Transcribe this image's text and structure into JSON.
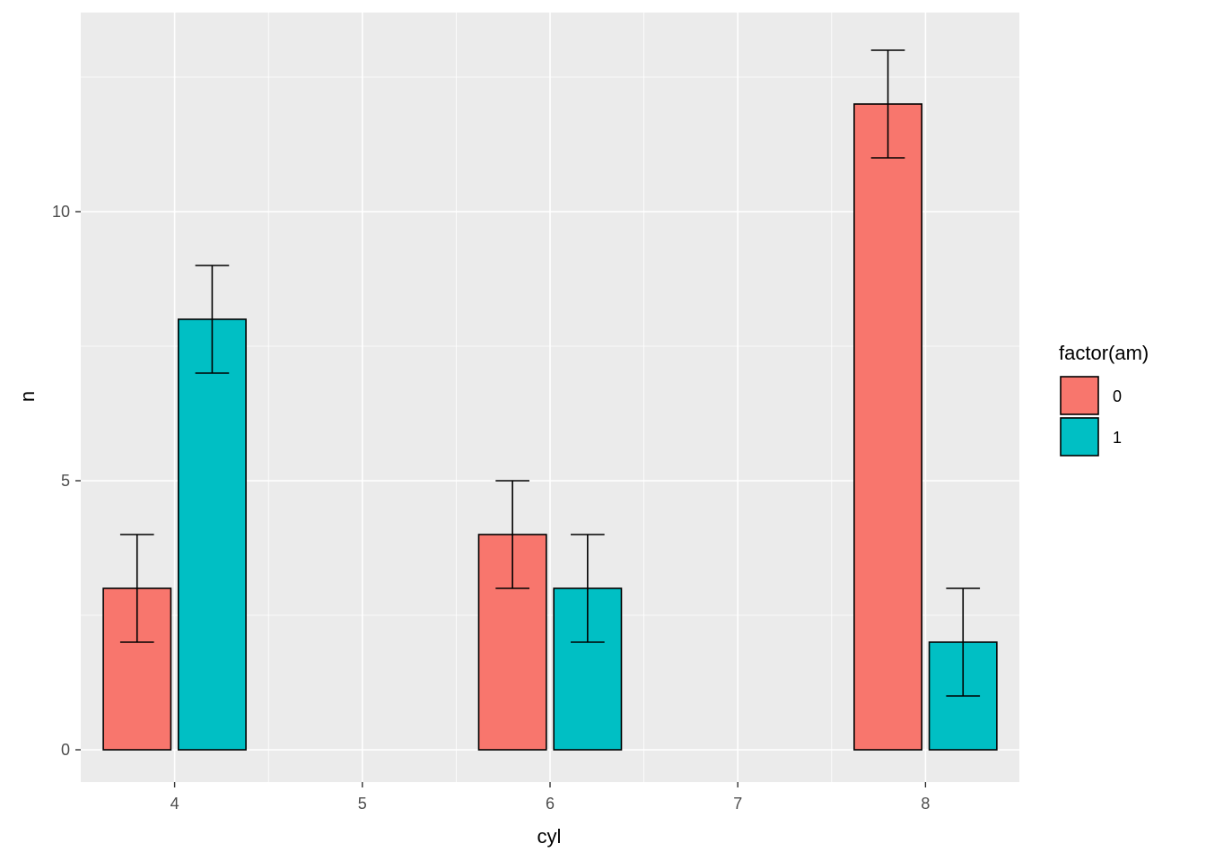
{
  "chart_data": {
    "type": "bar",
    "xlabel": "cyl",
    "ylabel": "n",
    "x_ticks": [
      "4",
      "5",
      "6",
      "7",
      "8"
    ],
    "y_ticks": [
      "0",
      "5",
      "10"
    ],
    "xlim": [
      3.5,
      8.5
    ],
    "ylim": [
      -0.6,
      13.7
    ],
    "x_minor_ticks": [
      4.5,
      5.5,
      6.5,
      7.5
    ],
    "y_minor_ticks": [
      2.5,
      7.5,
      12.5
    ],
    "grid": true,
    "legend": {
      "title": "factor(am)",
      "position": "right",
      "entries": [
        "0",
        "1"
      ]
    },
    "series": [
      {
        "name": "0",
        "color": "#F8766D",
        "points": [
          {
            "x": 4,
            "y": 3,
            "ymin": 2,
            "ymax": 4
          },
          {
            "x": 6,
            "y": 4,
            "ymin": 3,
            "ymax": 5
          },
          {
            "x": 8,
            "y": 12,
            "ymin": 11,
            "ymax": 13
          }
        ]
      },
      {
        "name": "1",
        "color": "#00BFC4",
        "points": [
          {
            "x": 4,
            "y": 8,
            "ymin": 7,
            "ymax": 9
          },
          {
            "x": 6,
            "y": 3,
            "ymin": 2,
            "ymax": 4
          },
          {
            "x": 8,
            "y": 2,
            "ymin": 1,
            "ymax": 3
          }
        ]
      }
    ],
    "bar_width": 0.36,
    "dodge": 0.4,
    "panel_background": "#EBEBEB",
    "grid_color": "#FFFFFF"
  }
}
